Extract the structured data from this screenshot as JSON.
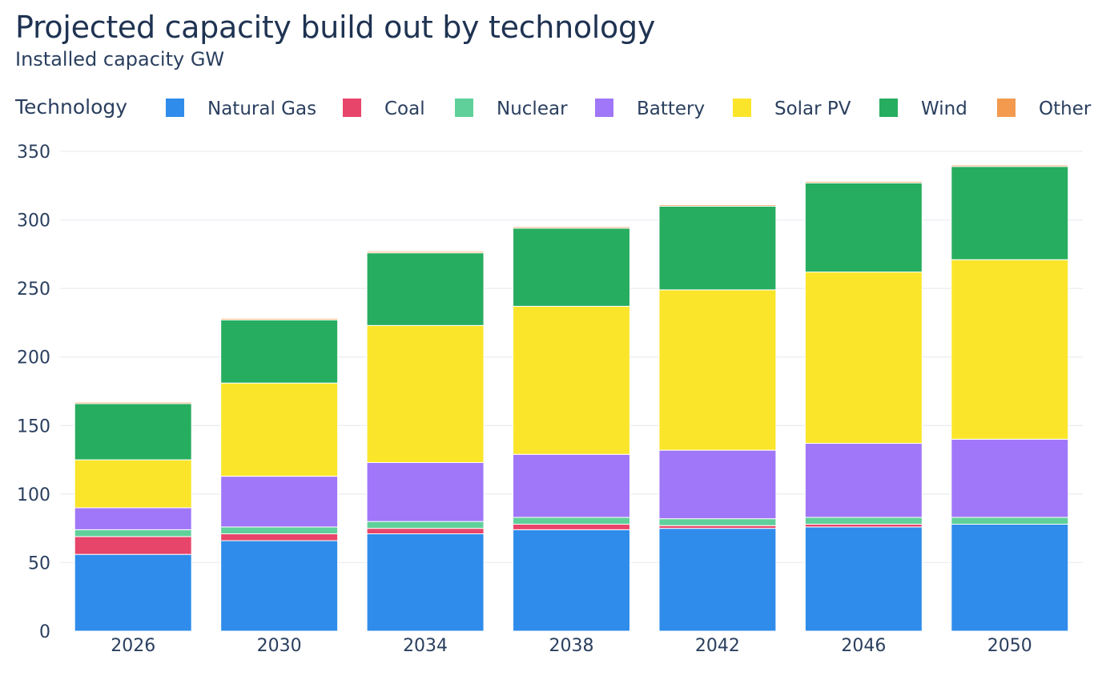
{
  "title": "Projected capacity build out by technology",
  "subtitle": "Installed capacity GW",
  "legend_title": "Technology",
  "chart_data": {
    "type": "bar",
    "stacked": true,
    "title": "Projected capacity build out by technology",
    "subtitle": "Installed capacity GW",
    "xlabel": "",
    "ylabel": "",
    "ylim": [
      0,
      350
    ],
    "yticks": [
      0,
      50,
      100,
      150,
      200,
      250,
      300,
      350
    ],
    "grid": true,
    "legend_position": "top",
    "categories": [
      "2026",
      "2030",
      "2034",
      "2038",
      "2042",
      "2046",
      "2050"
    ],
    "series": [
      {
        "name": "Natural Gas",
        "color": "#2f8ceb",
        "values": [
          56,
          66,
          71,
          74,
          75,
          76,
          78
        ]
      },
      {
        "name": "Coal",
        "color": "#e8456a",
        "values": [
          13,
          5,
          4,
          4,
          2,
          2,
          0
        ]
      },
      {
        "name": "Nuclear",
        "color": "#5fd09a",
        "values": [
          5,
          5,
          5,
          5,
          5,
          5,
          5
        ]
      },
      {
        "name": "Battery",
        "color": "#a077f8",
        "values": [
          16,
          37,
          43,
          46,
          50,
          54,
          57
        ]
      },
      {
        "name": "Solar PV",
        "color": "#fbe52a",
        "values": [
          35,
          68,
          100,
          108,
          117,
          125,
          131
        ]
      },
      {
        "name": "Wind",
        "color": "#27ad5f",
        "values": [
          41,
          46,
          53,
          57,
          61,
          65,
          68
        ]
      },
      {
        "name": "Other",
        "color": "#f39a4f",
        "values": [
          1,
          1,
          1,
          1,
          1,
          1,
          1
        ]
      }
    ]
  }
}
